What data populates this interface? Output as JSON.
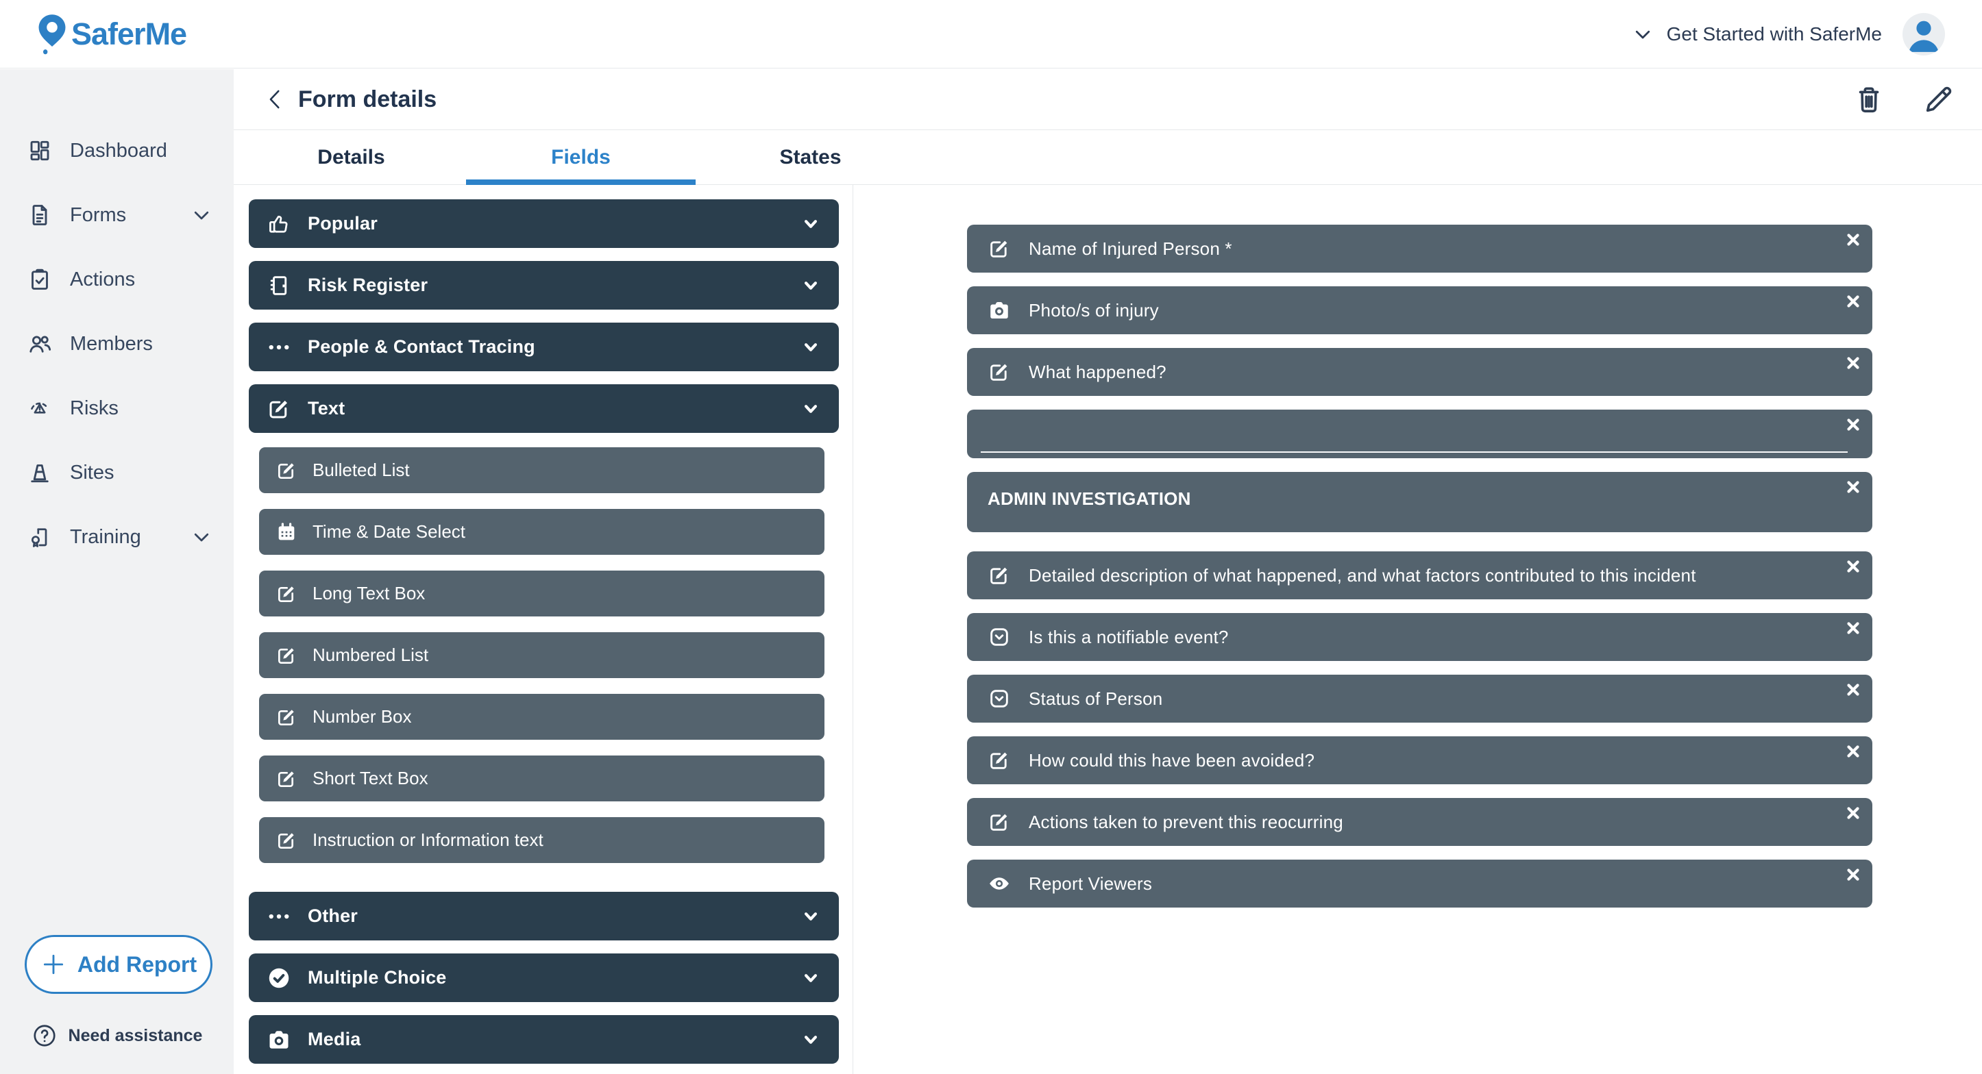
{
  "colors": {
    "accent_blue": "#2d80c5",
    "tab_active_blue": "#2c82c9",
    "category_panel": "#2a3e4d",
    "field_panel": "#54636e",
    "sidebar_bg": "#f1f2f3",
    "title_navy": "#22344e"
  },
  "topbar": {
    "logo_icon": "map-pin-icon",
    "logo_text": "SaferMe",
    "get_started": {
      "icon": "chevron-down-icon",
      "label": "Get Started with SaferMe"
    },
    "avatar_icon": "user-avatar-icon"
  },
  "sidebar": {
    "items": [
      {
        "label": "Dashboard",
        "icon": "dashboard-icon",
        "has_chevron": false
      },
      {
        "label": "Forms",
        "icon": "document-icon",
        "has_chevron": true
      },
      {
        "label": "Actions",
        "icon": "clipboard-check-icon",
        "has_chevron": false
      },
      {
        "label": "Members",
        "icon": "people-icon",
        "has_chevron": false
      },
      {
        "label": "Risks",
        "icon": "warning-triangle-icon",
        "has_chevron": false
      },
      {
        "label": "Sites",
        "icon": "traffic-cone-icon",
        "has_chevron": false
      },
      {
        "label": "Training",
        "icon": "certificate-icon",
        "has_chevron": true
      }
    ],
    "add_report": {
      "icon": "plus-icon",
      "label": "Add Report"
    },
    "need_assistance": {
      "icon": "question-circle-icon",
      "label": "Need assistance"
    }
  },
  "header": {
    "back_icon": "chevron-left-icon",
    "title": "Form details",
    "actions": [
      {
        "icon": "trash-icon"
      },
      {
        "icon": "pencil-icon"
      }
    ]
  },
  "tabs": [
    {
      "label": "Details",
      "active": false
    },
    {
      "label": "Fields",
      "active": true
    },
    {
      "label": "States",
      "active": false
    }
  ],
  "field_categories": [
    {
      "label": "Popular",
      "icon": "thumbs-up-icon",
      "expanded": false
    },
    {
      "label": "Risk Register",
      "icon": "register-book-icon",
      "expanded": false
    },
    {
      "label": "People & Contact Tracing",
      "icon": "ellipsis-icon",
      "expanded": false
    },
    {
      "label": "Text",
      "icon": "edit-icon",
      "expanded": true,
      "children": [
        {
          "label": "Bulleted List",
          "icon": "edit-icon"
        },
        {
          "label": "Time & Date Select",
          "icon": "calendar-icon"
        },
        {
          "label": "Long Text Box",
          "icon": "edit-icon"
        },
        {
          "label": "Numbered List",
          "icon": "edit-icon"
        },
        {
          "label": "Number Box",
          "icon": "edit-icon"
        },
        {
          "label": "Short Text Box",
          "icon": "edit-icon"
        },
        {
          "label": "Instruction or Information text",
          "icon": "edit-icon"
        }
      ]
    },
    {
      "label": "Other",
      "icon": "ellipsis-icon",
      "expanded": false
    },
    {
      "label": "Multiple Choice",
      "icon": "check-circle-icon",
      "expanded": false
    },
    {
      "label": "Media",
      "icon": "camera-icon",
      "expanded": false
    }
  ],
  "form_fields": [
    {
      "label": "Name of Injured Person *",
      "icon": "edit-icon",
      "type": "item"
    },
    {
      "label": "Photo/s of injury",
      "icon": "camera-icon",
      "type": "item"
    },
    {
      "label": "What happened?",
      "icon": "edit-icon",
      "type": "item"
    },
    {
      "label": "",
      "icon": "",
      "type": "empty-input"
    },
    {
      "label": "ADMIN INVESTIGATION",
      "icon": "",
      "type": "section-header"
    },
    {
      "label": "Detailed description of what happened, and what factors contributed to this incident",
      "icon": "edit-icon",
      "type": "item"
    },
    {
      "label": "Is this a notifiable event?",
      "icon": "dropdown-icon",
      "type": "item"
    },
    {
      "label": "Status of Person",
      "icon": "dropdown-icon",
      "type": "item"
    },
    {
      "label": "How could this have been avoided?",
      "icon": "edit-icon",
      "type": "item"
    },
    {
      "label": "Actions taken to prevent this reocurring",
      "icon": "edit-icon",
      "type": "item"
    },
    {
      "label": "Report Viewers",
      "icon": "eye-icon",
      "type": "item"
    }
  ]
}
